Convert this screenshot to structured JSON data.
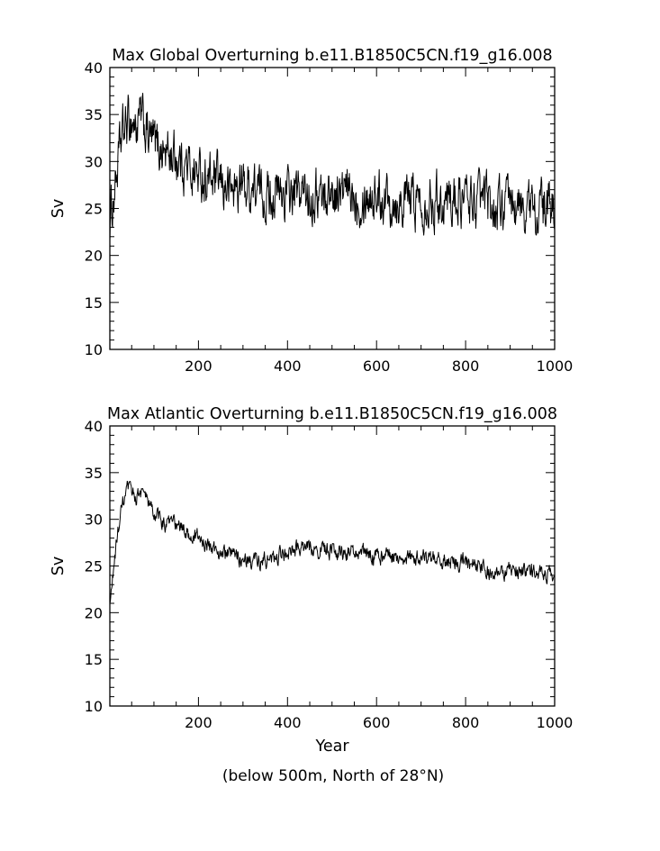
{
  "chart_data": [
    {
      "type": "line",
      "title": "Max Global Overturning b.e11.B1850C5CN.f19_g16.008",
      "xlabel": "",
      "ylabel": "Sv",
      "xlim": [
        1,
        1000
      ],
      "ylim": [
        10,
        40
      ],
      "xticks": [
        200,
        400,
        600,
        800,
        1000
      ],
      "yticks": [
        10,
        15,
        20,
        25,
        30,
        35,
        40
      ],
      "grid": false,
      "series": [
        {
          "x": [
            1,
            10,
            20,
            30,
            40,
            50,
            60,
            70,
            80,
            90,
            100,
            125,
            150,
            175,
            200,
            225,
            250,
            275,
            300,
            325,
            350,
            375,
            400,
            450,
            500,
            550,
            600,
            650,
            700,
            750,
            800,
            850,
            900,
            950,
            1000
          ],
          "values": [
            23.5,
            26.5,
            30,
            33,
            34,
            34.5,
            33.5,
            34.5,
            33.5,
            32.5,
            32,
            31,
            30.5,
            29.5,
            28.5,
            28,
            27.5,
            27,
            27.5,
            27,
            26.5,
            26.5,
            26.5,
            26.5,
            26.5,
            26.5,
            26.5,
            26,
            26,
            26,
            26,
            25.5,
            25,
            25,
            25
          ],
          "noise": 2.2
        }
      ]
    },
    {
      "type": "line",
      "title": "Max Atlantic Overturning b.e11.B1850C5CN.f19_g16.008",
      "xlabel": "Year",
      "ylabel": "Sv",
      "xlim": [
        1,
        1000
      ],
      "ylim": [
        10,
        40
      ],
      "xticks": [
        200,
        400,
        600,
        800,
        1000
      ],
      "yticks": [
        10,
        15,
        20,
        25,
        30,
        35,
        40
      ],
      "grid": false,
      "series": [
        {
          "x": [
            1,
            10,
            20,
            30,
            40,
            50,
            60,
            70,
            80,
            90,
            100,
            125,
            150,
            175,
            200,
            225,
            250,
            275,
            300,
            325,
            350,
            375,
            400,
            450,
            500,
            550,
            600,
            650,
            700,
            750,
            800,
            850,
            900,
            950,
            1000
          ],
          "values": [
            20.5,
            25,
            29,
            31.5,
            33,
            33,
            32.5,
            33,
            32.5,
            31.5,
            30.5,
            29.5,
            29.5,
            28.5,
            28,
            27,
            26.5,
            26,
            26,
            25.5,
            25.5,
            26,
            26.5,
            27,
            26.5,
            26.5,
            26,
            26,
            26,
            25.5,
            25.5,
            24.5,
            24.5,
            24.5,
            24
          ],
          "noise": 0.7
        }
      ]
    }
  ],
  "footnote": "(below 500m, North of 28°N)"
}
